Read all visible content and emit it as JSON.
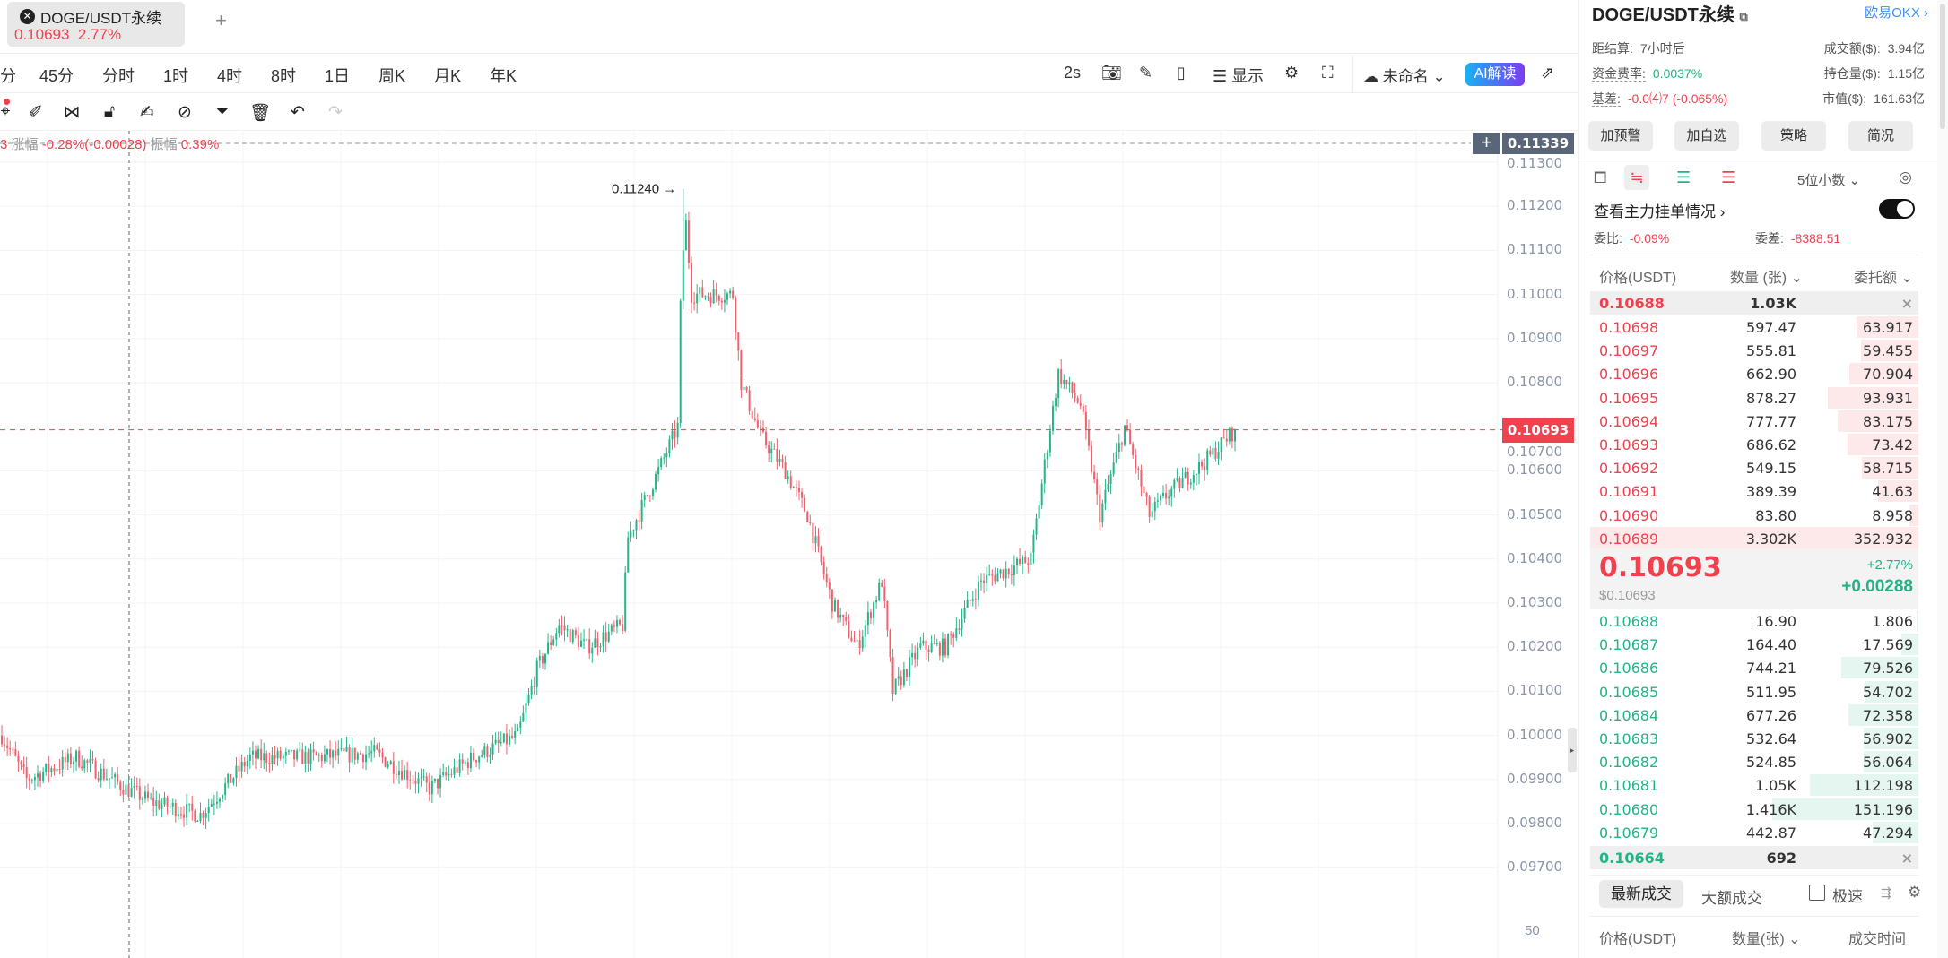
{
  "tab": {
    "symbol": "DOGE/USDT永续",
    "coin_icon": "doge-icon",
    "price": "0.10693",
    "change": "2.77%",
    "add": "+"
  },
  "timeframes": [
    "分",
    "45分",
    "分时",
    "1时",
    "4时",
    "8时",
    "1日",
    "周K",
    "月K",
    "年K"
  ],
  "toolbar": {
    "refresh": "2s",
    "display": "显示",
    "layout": "未命名",
    "ai": "AI解读"
  },
  "draw_tools": [
    "cursor-icon",
    "brush-icon",
    "magnet-icon",
    "lock-icon",
    "note-icon",
    "link-icon",
    "filter-icon",
    "trash-icon",
    "undo-icon",
    "redo-icon"
  ],
  "info_line": {
    "prefix": "3",
    "change_label": "涨幅",
    "change": "-0.28%(-0.00028)",
    "amp_label": "振幅",
    "amp": "0.39%"
  },
  "chart_data": {
    "type": "candlestick",
    "yaxis_ticks": [
      "0.11300",
      "0.11200",
      "0.11100",
      "0.11000",
      "0.10900",
      "0.10800",
      "0.10700",
      "0.10600",
      "0.10500",
      "0.10400",
      "0.10300",
      "0.10200",
      "0.10100",
      "0.10000",
      "0.09900",
      "0.09800",
      "0.09700"
    ],
    "ylim": [
      0.0965,
      0.1136
    ],
    "last_price": "0.10693",
    "crosshair_price": "0.11339",
    "high_label": "0.11240",
    "bottom_label": "50",
    "price_path": [
      [
        0,
        0.1
      ],
      [
        9,
        0.099
      ],
      [
        27,
        0.0995
      ],
      [
        45,
        0.0988
      ],
      [
        54,
        0.0985
      ],
      [
        72,
        0.0982
      ],
      [
        90,
        0.0995
      ],
      [
        112,
        0.0995
      ],
      [
        135,
        0.0996
      ],
      [
        155,
        0.0988
      ],
      [
        171,
        0.0995
      ],
      [
        187,
        0.1
      ],
      [
        194,
        0.1015
      ],
      [
        202,
        0.1025
      ],
      [
        212,
        0.102
      ],
      [
        225,
        0.1025
      ],
      [
        227,
        0.1045
      ],
      [
        238,
        0.106
      ],
      [
        245,
        0.107
      ],
      [
        247,
        0.1124
      ],
      [
        250,
        0.11
      ],
      [
        261,
        0.11
      ],
      [
        265,
        0.11
      ],
      [
        268,
        0.108
      ],
      [
        275,
        0.1068
      ],
      [
        284,
        0.106
      ],
      [
        292,
        0.105
      ],
      [
        301,
        0.103
      ],
      [
        310,
        0.102
      ],
      [
        319,
        0.1035
      ],
      [
        323,
        0.101
      ],
      [
        333,
        0.102
      ],
      [
        342,
        0.102
      ],
      [
        355,
        0.1035
      ],
      [
        373,
        0.104
      ],
      [
        380,
        0.107
      ],
      [
        383,
        0.1082
      ],
      [
        391,
        0.1075
      ],
      [
        398,
        0.105
      ],
      [
        407,
        0.107
      ],
      [
        416,
        0.105
      ],
      [
        423,
        0.1055
      ],
      [
        436,
        0.1062
      ],
      [
        447,
        0.10693
      ]
    ],
    "colors": {
      "up": "#26b58a",
      "down": "#f0616d"
    }
  },
  "panel": {
    "title": "DOGE/USDT永续",
    "exchange": "欧易OKX",
    "stats": [
      {
        "label": "距结算:",
        "value": "7小时后"
      },
      {
        "label": "成交额($):",
        "value": "3.94亿"
      },
      {
        "label": "资金费率:",
        "value": "0.0037%"
      },
      {
        "label": "持仓量($):",
        "value": "1.15亿"
      },
      {
        "label": "基差:",
        "value": "-0.0⑷7 (-0.065%)"
      },
      {
        "label": "市值($):",
        "value": "161.63亿"
      }
    ],
    "buttons": [
      "加预警",
      "加自选",
      "策略",
      "简况"
    ],
    "decimals": "5位小数",
    "main_orders": "查看主力挂单情况",
    "ratio_label": "委比:",
    "ratio": "-0.09%",
    "diff_label": "委差:",
    "diff": "-8388.51",
    "headers": [
      "价格(USDT)",
      "数量 (张)",
      "委托额"
    ],
    "ask_big": {
      "price": "0.10688",
      "qty": "1.03K"
    },
    "asks": [
      [
        "0.10698",
        "597.47",
        "63.917"
      ],
      [
        "0.10697",
        "555.81",
        "59.455"
      ],
      [
        "0.10696",
        "662.90",
        "70.904"
      ],
      [
        "0.10695",
        "878.27",
        "93.931"
      ],
      [
        "0.10694",
        "777.77",
        "83.175"
      ],
      [
        "0.10693",
        "686.62",
        "73.42"
      ],
      [
        "0.10692",
        "549.15",
        "58.715"
      ],
      [
        "0.10691",
        "389.39",
        "41.63"
      ],
      [
        "0.10690",
        "83.80",
        "8.958"
      ],
      [
        "0.10689",
        "3.302K",
        "352.932"
      ]
    ],
    "mid": {
      "price": "0.10693",
      "usd": "$0.10693",
      "pct": "+2.77%",
      "abs": "+0.00288"
    },
    "bids": [
      [
        "0.10688",
        "16.90",
        "1.806"
      ],
      [
        "0.10687",
        "164.40",
        "17.569"
      ],
      [
        "0.10686",
        "744.21",
        "79.526"
      ],
      [
        "0.10685",
        "511.95",
        "54.702"
      ],
      [
        "0.10684",
        "677.26",
        "72.358"
      ],
      [
        "0.10683",
        "532.64",
        "56.902"
      ],
      [
        "0.10682",
        "524.85",
        "56.064"
      ],
      [
        "0.10681",
        "1.05K",
        "112.198"
      ],
      [
        "0.10680",
        "1.416K",
        "151.196"
      ],
      [
        "0.10679",
        "442.87",
        "47.294"
      ]
    ],
    "bid_big": {
      "price": "0.10664",
      "qty": "692"
    },
    "trade_tabs": [
      "最新成交",
      "大额成交"
    ],
    "fast": "极速",
    "trade_headers": [
      "价格(USDT)",
      "数量(张)",
      "成交时间"
    ]
  }
}
